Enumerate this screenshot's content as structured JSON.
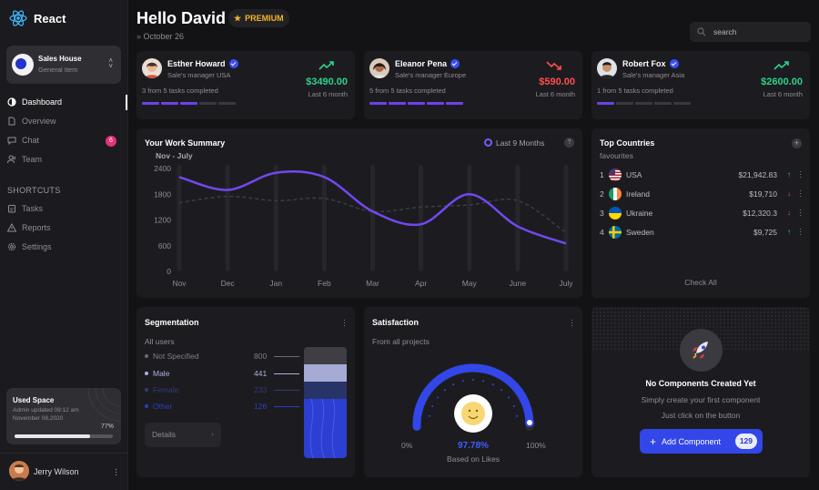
{
  "brand": {
    "name": "React"
  },
  "team": {
    "name": "Sales House",
    "sub": "General Item"
  },
  "nav": {
    "items": [
      {
        "label": "Dashboard",
        "icon": "dashboard-icon"
      },
      {
        "label": "Overview",
        "icon": "document-icon"
      },
      {
        "label": "Chat",
        "icon": "chat-icon",
        "badge": "6"
      },
      {
        "label": "Team",
        "icon": "team-icon"
      }
    ]
  },
  "shortcuts": {
    "title": "SHORTCUTS",
    "items": [
      {
        "label": "Tasks",
        "icon": "tasks-icon"
      },
      {
        "label": "Reports",
        "icon": "warning-icon"
      },
      {
        "label": "Settings",
        "icon": "gear-icon"
      }
    ]
  },
  "used_space": {
    "title": "Used Space",
    "sub": "Admin updated 09:12 am November 08,2020",
    "percent_label": "77%",
    "percent": 0.77
  },
  "user": {
    "name": "Jerry Wilson"
  },
  "header": {
    "greeting": "Hello David",
    "badge": "PREMIUM",
    "date": "October 26"
  },
  "search": {
    "placeholder": "search"
  },
  "people": [
    {
      "name": "Esther Howard",
      "role": "Sale's manager USA",
      "tasks": "3 from 5 tasks completed",
      "amount": "$3490.00",
      "period": "Last 6 month",
      "trend": "up",
      "done": 3
    },
    {
      "name": "Eleanor Pena",
      "role": "Sale's manager Europe",
      "tasks": "5 from 5 tasks completed",
      "amount": "$590.00",
      "period": "Last 6 month",
      "trend": "down",
      "done": 5
    },
    {
      "name": "Robert Fox",
      "role": "Sale's manager Asia",
      "tasks": "1 from 5 tasks completed",
      "amount": "$2600.00",
      "period": "Last 6 month",
      "trend": "up",
      "done": 1
    }
  ],
  "colors": {
    "up": "#2ed08a",
    "down": "#ff4d4d",
    "accent": "#6a44e8",
    "primary": "#3346e8"
  },
  "work_summary": {
    "title": "Your Work Summary",
    "period": "Last 9 Months",
    "help": "?",
    "range": "Nov - July"
  },
  "chart_data": {
    "type": "line",
    "categories": [
      "Nov",
      "Dec",
      "Jan",
      "Feb",
      "Mar",
      "Apr",
      "May",
      "June",
      "July"
    ],
    "yticks": [
      "2400",
      "1800",
      "1200",
      "600",
      "0"
    ],
    "ylim": [
      0,
      2400
    ],
    "series": [
      {
        "values": [
          2200,
          1900,
          2300,
          2200,
          1400,
          1100,
          1800,
          1050,
          650
        ]
      },
      {
        "values": [
          1600,
          1750,
          1650,
          1700,
          1400,
          1500,
          1550,
          1650,
          900
        ]
      }
    ]
  },
  "countries": {
    "title": "Top Countries",
    "sub": "favourites",
    "check_all": "Check All",
    "rows": [
      {
        "rank": "1",
        "name": "USA",
        "value": "$21,942.83",
        "trend": "up"
      },
      {
        "rank": "2",
        "name": "Ireland",
        "value": "$19,710",
        "trend": "down"
      },
      {
        "rank": "3",
        "name": "Ukraine",
        "value": "$12,320.3",
        "trend": "down"
      },
      {
        "rank": "4",
        "name": "Sweden",
        "value": "$9,725",
        "trend": "up"
      }
    ]
  },
  "segmentation": {
    "title": "Segmentation",
    "sub": "All users",
    "details": "Details",
    "rows": [
      {
        "label": "Not Specified",
        "value": "800"
      },
      {
        "label": "Male",
        "value": "441"
      },
      {
        "label": "Female",
        "value": "233"
      },
      {
        "label": "Other",
        "value": "126"
      }
    ]
  },
  "satisfaction": {
    "title": "Satisfaction",
    "sub": "From all projects",
    "min": "0%",
    "max": "100%",
    "value": "97.78%",
    "fraction": 0.9778,
    "caption": "Based on Likes"
  },
  "components": {
    "title": "No Components Created Yet",
    "line1": "Simply create your first component",
    "line2": "Just click on the button",
    "button": "Add Component",
    "count": "129"
  }
}
